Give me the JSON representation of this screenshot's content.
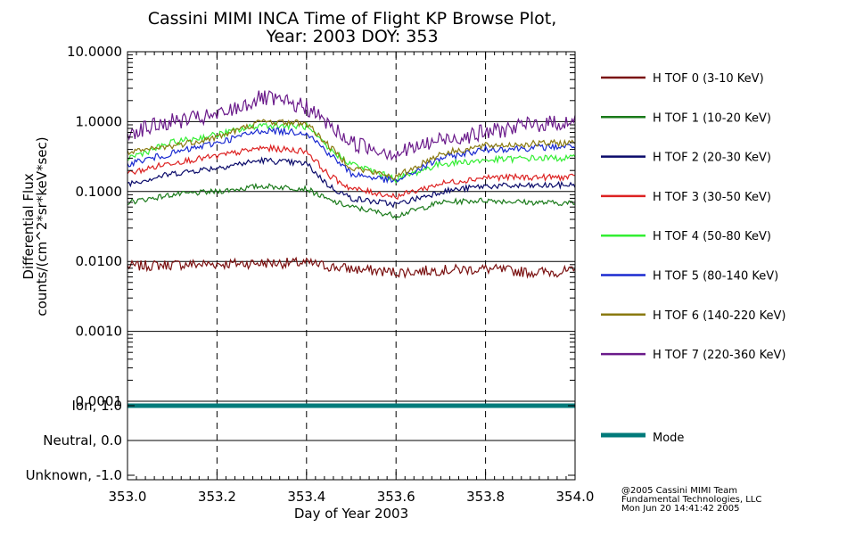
{
  "chart_data": [
    {
      "type": "line",
      "title": "Cassini MIMI INCA Time of Flight KP Browse Plot,",
      "subtitle": "Year: 2003 DOY: 353",
      "ylabel_line1": "Differential Flux",
      "ylabel_line2": "counts/(cm^2*sr*keV*sec)",
      "xlabel": "Day of Year 2003",
      "xlim": [
        353.0,
        354.0
      ],
      "ylim": [
        0.0001,
        10.0
      ],
      "yscale": "log",
      "xticks": [
        "353.0",
        "353.2",
        "353.4",
        "353.6",
        "353.8",
        "354.0"
      ],
      "yticks": [
        "10.0000",
        "1.0000",
        "0.1000",
        "0.0100",
        "0.0010",
        "0.0001"
      ],
      "grid": "horizontal solid at decades, vertical dashed at 0.2 day",
      "legend_position": "right",
      "series": [
        {
          "name": "H TOF 0 (3-10 KeV)",
          "color": "#7a1010",
          "x": [
            353.0,
            353.1,
            353.2,
            353.3,
            353.4,
            353.45,
            353.5,
            353.6,
            353.7,
            353.8,
            353.9,
            354.0
          ],
          "values": [
            0.0085,
            0.009,
            0.0092,
            0.0095,
            0.0095,
            0.0085,
            0.0078,
            0.007,
            0.0075,
            0.0078,
            0.007,
            0.0072
          ]
        },
        {
          "name": "H TOF 1 (10-20 KeV)",
          "color": "#1a7a1a",
          "x": [
            353.0,
            353.1,
            353.2,
            353.3,
            353.4,
            353.45,
            353.5,
            353.6,
            353.7,
            353.8,
            353.9,
            354.0
          ],
          "values": [
            0.07,
            0.09,
            0.1,
            0.12,
            0.11,
            0.075,
            0.06,
            0.045,
            0.07,
            0.075,
            0.07,
            0.068
          ]
        },
        {
          "name": "H TOF 2 (20-30 KeV)",
          "color": "#0a0a6a",
          "x": [
            353.0,
            353.1,
            353.2,
            353.3,
            353.4,
            353.45,
            353.5,
            353.6,
            353.7,
            353.8,
            353.9,
            354.0
          ],
          "values": [
            0.13,
            0.18,
            0.22,
            0.28,
            0.25,
            0.12,
            0.08,
            0.065,
            0.1,
            0.12,
            0.12,
            0.125
          ]
        },
        {
          "name": "H TOF 3 (30-50 KeV)",
          "color": "#dd2222",
          "x": [
            353.0,
            353.1,
            353.2,
            353.3,
            353.4,
            353.45,
            353.5,
            353.6,
            353.7,
            353.8,
            353.9,
            354.0
          ],
          "values": [
            0.18,
            0.26,
            0.32,
            0.42,
            0.38,
            0.17,
            0.11,
            0.085,
            0.13,
            0.16,
            0.16,
            0.16
          ]
        },
        {
          "name": "H TOF 4 (50-80 KeV)",
          "color": "#33ee33",
          "x": [
            353.0,
            353.1,
            353.2,
            353.3,
            353.4,
            353.45,
            353.5,
            353.6,
            353.7,
            353.8,
            353.9,
            354.0
          ],
          "values": [
            0.3,
            0.5,
            0.65,
            0.9,
            0.85,
            0.4,
            0.25,
            0.15,
            0.25,
            0.28,
            0.3,
            0.3
          ]
        },
        {
          "name": "H TOF 5 (80-140 KeV)",
          "color": "#1a2ad0",
          "x": [
            353.0,
            353.1,
            353.2,
            353.3,
            353.4,
            353.45,
            353.5,
            353.6,
            353.7,
            353.8,
            353.9,
            354.0
          ],
          "values": [
            0.25,
            0.35,
            0.5,
            0.75,
            0.7,
            0.35,
            0.18,
            0.14,
            0.3,
            0.4,
            0.42,
            0.45
          ]
        },
        {
          "name": "H TOF 6 (140-220 KeV)",
          "color": "#8a7a10",
          "x": [
            353.0,
            353.1,
            353.2,
            353.3,
            353.4,
            353.45,
            353.5,
            353.6,
            353.7,
            353.8,
            353.9,
            354.0
          ],
          "values": [
            0.35,
            0.45,
            0.6,
            1.0,
            0.95,
            0.45,
            0.22,
            0.16,
            0.35,
            0.45,
            0.48,
            0.5
          ]
        },
        {
          "name": "H TOF 7 (220-360 KeV)",
          "color": "#6a1a8a",
          "x": [
            353.0,
            353.1,
            353.2,
            353.3,
            353.4,
            353.45,
            353.5,
            353.6,
            353.7,
            353.8,
            353.9,
            354.0
          ],
          "values": [
            0.7,
            1.0,
            1.2,
            2.2,
            1.6,
            0.9,
            0.5,
            0.35,
            0.55,
            0.7,
            0.9,
            1.0
          ]
        }
      ]
    },
    {
      "type": "line",
      "title": "",
      "xlim": [
        353.0,
        354.0
      ],
      "ylim": [
        -1.0,
        1.0
      ],
      "yticks": [
        "Ion, 1.0",
        "Neutral, 0.0",
        "Unknown, -1.0"
      ],
      "xticks": [
        "353.0",
        "353.2",
        "353.4",
        "353.6",
        "353.8",
        "354.0"
      ],
      "xlabel": "Day of Year 2003",
      "legend_position": "right",
      "series": [
        {
          "name": "Mode",
          "color": "#007a7a",
          "x": [
            353.0,
            354.0
          ],
          "values": [
            1.0,
            1.0
          ]
        }
      ]
    }
  ],
  "footer": {
    "line1": "@2005 Cassini MIMI Team",
    "line2": "Fundamental Technologies, LLC",
    "line3": "Mon Jun 20 14:41:42 2005"
  }
}
